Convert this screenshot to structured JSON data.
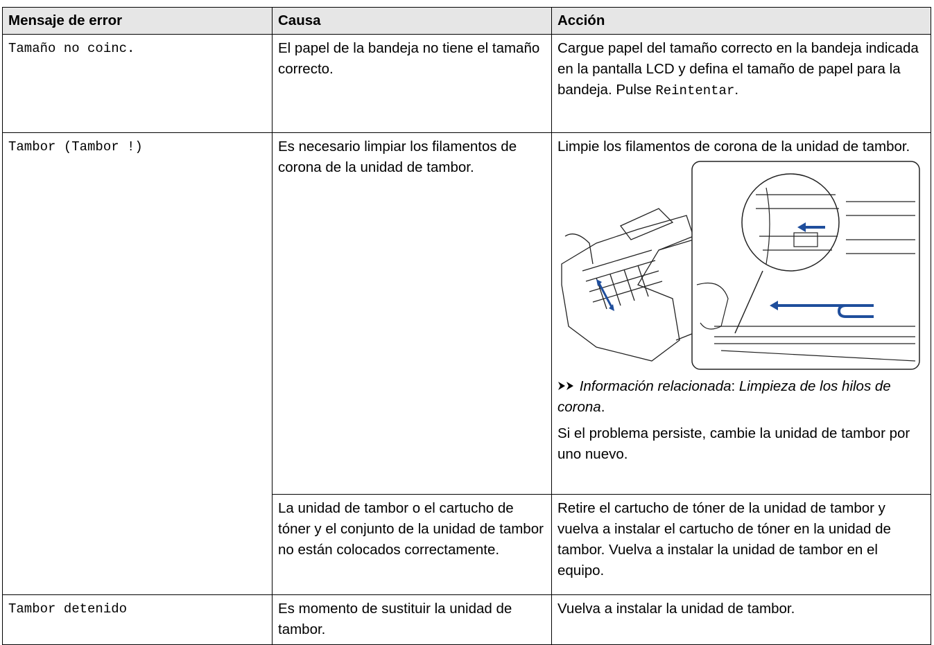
{
  "table": {
    "header": [
      "Mensaje de error",
      "Causa",
      "Acción"
    ],
    "rows": [
      {
        "message": "Tamaño no coinc.",
        "cause": "El papel de la bandeja no tiene el tamaño correcto.",
        "action": {
          "text": "Cargue papel del tamaño correcto en la bandeja indicada en la pantalla LCD y defina el tamaño de papel para la bandeja. Pulse",
          "button": "Reintentar",
          "end": "."
        }
      },
      {
        "message": "Tambor (Tambor !)",
        "cause": "Es necesario limpiar los filamentos de corona de la unidad de tambor.",
        "action": {
          "text": "Limpie los filamentos de corona de la unidad de tambor.",
          "related_label": "Información relacionada",
          "separator": ":",
          "related_link": "Limpieza de los hilos de corona",
          "end": ".",
          "note": "Si el problema persiste, cambie la unidad de tambor por uno nuevo."
        }
      },
      {
        "cause": "La unidad de tambor o el cartucho de tóner y el conjunto de la unidad de tambor no están colocados correctamente.",
        "action": {
          "text": "Retire el cartucho de tóner de la unidad de tambor y vuelva a instalar el cartucho de tóner en la unidad de tambor. Vuelva a instalar la unidad de tambor en el equipo."
        }
      },
      {
        "message": "Tambor detenido",
        "cause": "Es momento de sustituir la unidad de tambor.",
        "action": {
          "text": "Vuelva a instalar la unidad de tambor."
        }
      }
    ]
  }
}
